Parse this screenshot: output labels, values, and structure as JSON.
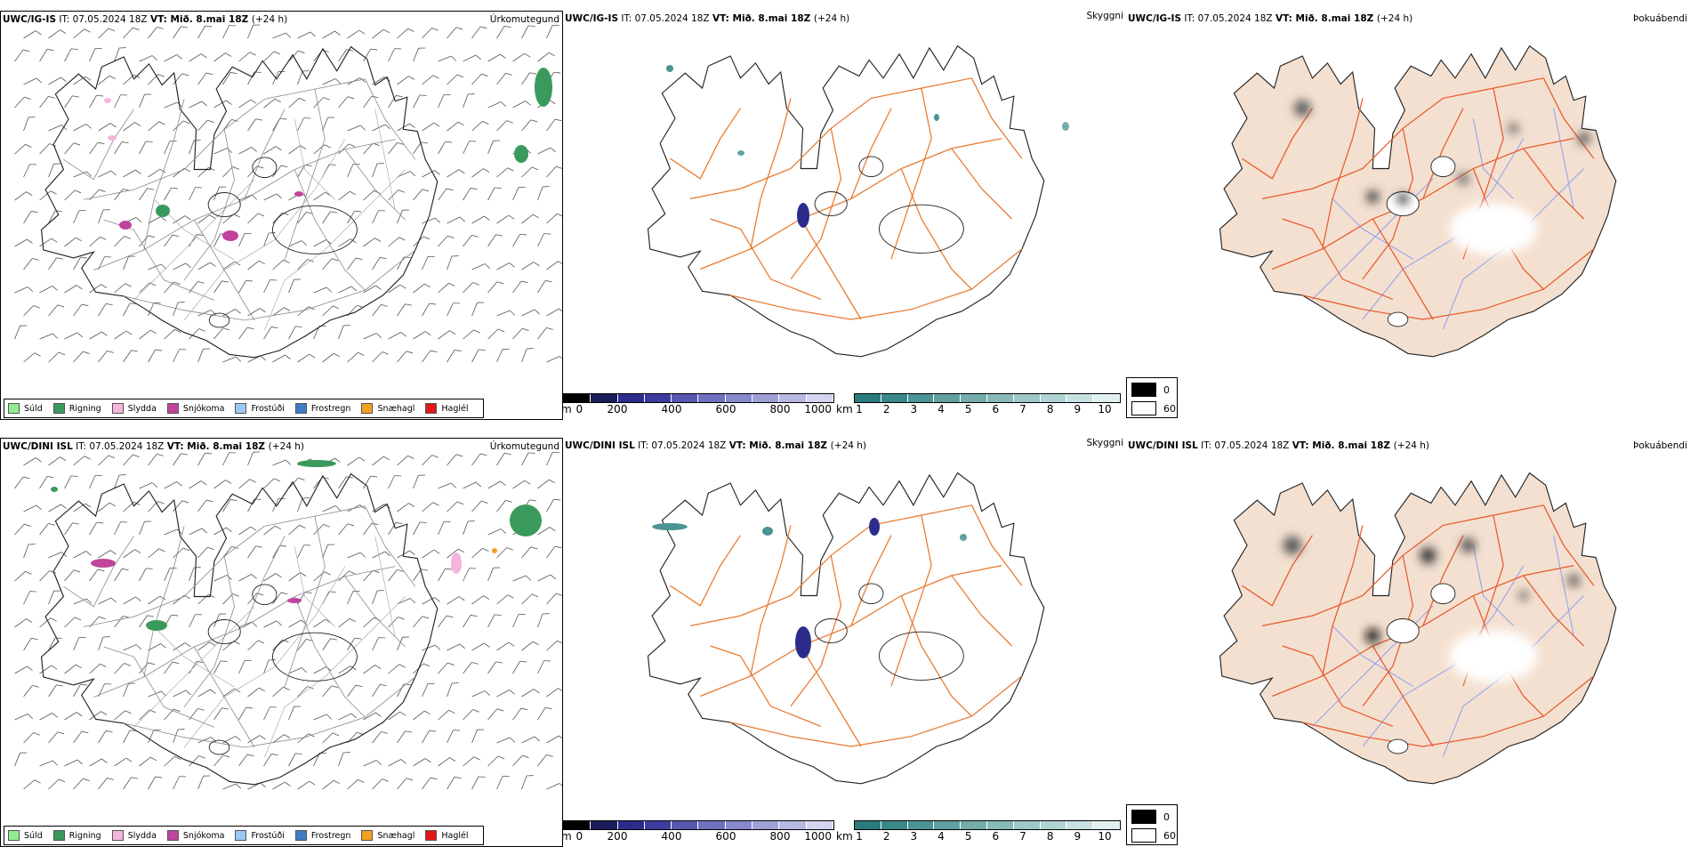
{
  "rows": [
    {
      "id": "ig",
      "model": "UWC/IG-IS",
      "it": "IT: 07.05.2024 18Z",
      "vt_label": "VT:",
      "vt_value": "Mið. 8.mai 18Z",
      "lead": "(+24 h)"
    },
    {
      "id": "dini",
      "model": "UWC/DINI ISL",
      "it": "IT: 07.05.2024 18Z",
      "vt_label": "VT:",
      "vt_value": "Mið. 8.mai 18Z",
      "lead": "(+24 h)"
    }
  ],
  "panel_titles": {
    "precip_type": "Úrkomutegund",
    "visibility": "Skyggni",
    "fog": "Þokuábendi"
  },
  "precip_legend": [
    {
      "label": "Súld",
      "color": "#90ee90"
    },
    {
      "label": "Rigning",
      "color": "#3a9a5c"
    },
    {
      "label": "Slydda",
      "color": "#f4b4dc"
    },
    {
      "label": "Snjókoma",
      "color": "#c0449c"
    },
    {
      "label": "Frostúði",
      "color": "#9cc8f4"
    },
    {
      "label": "Frostregn",
      "color": "#3c7cc8"
    },
    {
      "label": "Snæhagl",
      "color": "#f4a020"
    },
    {
      "label": "Haglél",
      "color": "#e01818"
    }
  ],
  "vis_m_bar": {
    "unit": "m",
    "ticks": [
      "0",
      "200",
      "400",
      "600",
      "800",
      "1000"
    ],
    "colors": [
      "#000000",
      "#1c1c5c",
      "#2c2c8c",
      "#3c3ca0",
      "#5858b0",
      "#7070c0",
      "#8888cc",
      "#a0a0d8",
      "#b8b8e4",
      "#d4d4f0"
    ]
  },
  "vis_km_bar": {
    "unit": "km",
    "ticks": [
      "1",
      "2",
      "3",
      "4",
      "5",
      "6",
      "7",
      "8",
      "9",
      "10"
    ],
    "colors": [
      "#2a7c7c",
      "#3a8888",
      "#4c9494",
      "#60a0a0",
      "#74acac",
      "#88baba",
      "#9cc8c8",
      "#b0d4d4",
      "#c8e2e2",
      "#e0f0f0"
    ]
  },
  "fog_legend": [
    {
      "label": "0",
      "color": "#000000"
    },
    {
      "label": "60",
      "color": "#ffffff"
    }
  ],
  "colors": {
    "roads": "#e8782c",
    "fog_land": "#f4e0d0",
    "fog_roads": "#e85a2c",
    "fog_rivers": "#8ca0f0"
  }
}
